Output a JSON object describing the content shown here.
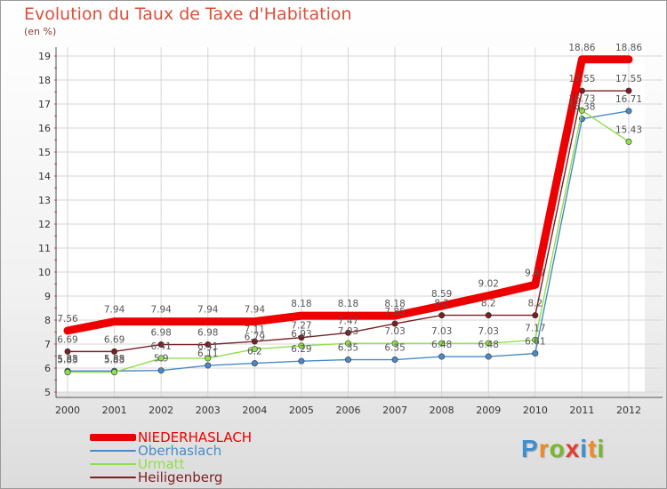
{
  "header": {
    "title": "Evolution du Taux de Taxe d'Habitation",
    "subtitle": "(en %)"
  },
  "chart_data": {
    "type": "line",
    "title": "Evolution du Taux de Taxe d'Habitation",
    "subtitle": "(en %)",
    "xlabel": "",
    "ylabel": "",
    "x": [
      "2000",
      "2001",
      "2002",
      "2003",
      "2004",
      "2005",
      "2006",
      "2007",
      "2008",
      "2009",
      "2010",
      "2011",
      "2012"
    ],
    "ylim": [
      5,
      19
    ],
    "yticks": [
      5,
      6,
      7,
      8,
      9,
      10,
      11,
      12,
      13,
      14,
      15,
      16,
      17,
      18,
      19
    ],
    "grid": true,
    "legend_position": "bottom-left",
    "series": [
      {
        "name": "NIEDERHASLACH",
        "color": "#ee0000",
        "values": [
          7.56,
          7.94,
          7.94,
          7.94,
          7.94,
          8.18,
          8.18,
          8.18,
          8.59,
          9.02,
          9.47,
          18.86,
          18.86
        ],
        "labels": [
          "7.56",
          "7.94",
          "7.94",
          "7.94",
          "7.94",
          "8.18",
          "8.18",
          "8.18",
          "8.59",
          "9.02",
          "9.47",
          "18.86",
          "18.86"
        ]
      },
      {
        "name": "Oberhaslach",
        "color": "#4a8ac7",
        "values": [
          5.88,
          5.88,
          5.9,
          6.11,
          6.2,
          6.29,
          6.35,
          6.35,
          6.48,
          6.48,
          6.61,
          16.38,
          16.71
        ],
        "labels": [
          "5.88",
          "5.88",
          "5.9",
          "6.11",
          "6.2",
          "6.29",
          "6.35",
          "6.35",
          "6.48",
          "6.48",
          "6.61",
          "16.38",
          "16.71"
        ]
      },
      {
        "name": "Urmatt",
        "color": "#8fe04a",
        "values": [
          5.83,
          5.83,
          6.41,
          6.41,
          6.79,
          6.93,
          7.03,
          7.03,
          7.03,
          7.03,
          7.17,
          16.73,
          15.43
        ],
        "labels": [
          "5.83",
          "5.83",
          "6.41",
          "6.41",
          "6.79",
          "6.93",
          "7.03",
          "7.03",
          "7.03",
          "7.03",
          "7.17",
          "16.73",
          "15.43"
        ]
      },
      {
        "name": "Heiligenberg",
        "color": "#7a1f24",
        "values": [
          6.69,
          6.69,
          6.98,
          6.98,
          7.11,
          7.27,
          7.47,
          7.85,
          8.2,
          8.2,
          8.2,
          17.55,
          17.55
        ],
        "labels": [
          "6.69",
          "6.69",
          "6.98",
          "6.98",
          "7.11",
          "7.27",
          "7.47",
          "7.85",
          "8.2",
          "8.2",
          "8.2",
          "17.55",
          "17.55"
        ]
      }
    ]
  },
  "logo": {
    "letters": [
      "P",
      "r",
      "o",
      "x",
      "i",
      "t",
      "i"
    ],
    "colors": [
      "#3d8fd1",
      "#f08a24",
      "#77b82a",
      "#e23c30",
      "#3d8fd1",
      "#f08a24",
      "#77b82a"
    ]
  }
}
